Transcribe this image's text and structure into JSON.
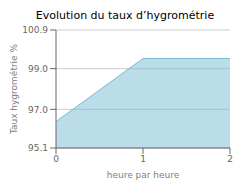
{
  "chart_data": {
    "type": "area",
    "title": "Evolution du taux d’hygrométrie",
    "x_label": "heure par heure",
    "y_label": "Taux hygrométrie %",
    "x": [
      0,
      1,
      2
    ],
    "values": [
      96.4,
      99.5,
      99.5
    ],
    "color": "#77bbd6",
    "xlim": [
      0,
      2
    ],
    "xticks": [
      0,
      1,
      2
    ],
    "ylim": [
      95.1,
      100.9
    ],
    "yticks": [
      95.1,
      {
        "value": 97.0,
        "label": "97.0"
      },
      {
        "value": 99.0,
        "label": "99.0"
      },
      100.9
    ],
    "grid": true
  }
}
